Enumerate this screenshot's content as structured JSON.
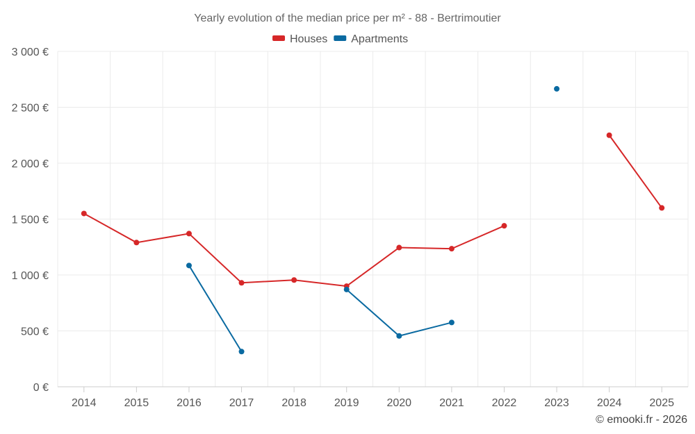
{
  "chart_data": {
    "type": "line",
    "title": "Yearly evolution of the median price per m² - 88 - Bertrimoutier",
    "categories": [
      "2014",
      "2015",
      "2016",
      "2017",
      "2018",
      "2019",
      "2020",
      "2021",
      "2022",
      "2023",
      "2024",
      "2025"
    ],
    "series": [
      {
        "name": "Houses",
        "color": "#d62728",
        "values": [
          1550,
          1290,
          1370,
          930,
          955,
          900,
          1245,
          1235,
          1440,
          null,
          2250,
          1600
        ]
      },
      {
        "name": "Apartments",
        "color": "#0a6aa1",
        "values": [
          null,
          null,
          1085,
          315,
          null,
          870,
          455,
          575,
          null,
          2665,
          null,
          null
        ]
      }
    ],
    "ylim": [
      0,
      3000
    ],
    "yticks": [
      0,
      500,
      1000,
      1500,
      2000,
      2500,
      3000
    ],
    "ytick_labels": [
      "0 €",
      "500 €",
      "1 000 €",
      "1 500 €",
      "2 000 €",
      "2 500 €",
      "3 000 €"
    ],
    "xlabel": "",
    "ylabel": "",
    "grid": true,
    "legend_position": "top-center"
  },
  "credit": "© emooki.fr - 2026"
}
